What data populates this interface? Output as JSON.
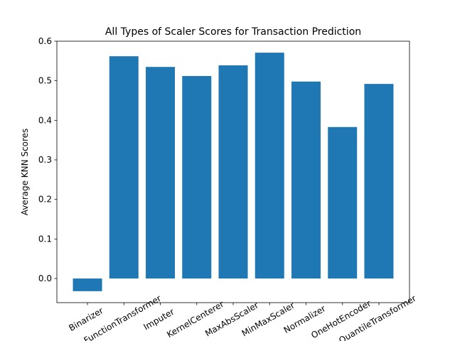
{
  "chart_data": {
    "type": "bar",
    "title": "All Types of Scaler Scores for Transaction Prediction",
    "y_label": "Average KNN Scores",
    "categories": [
      "Binarizer",
      "FunctionTransformer",
      "Imputer",
      "KernelCenterer",
      "MaxAbsScaler",
      "MinMaxScaler",
      "Normalizer",
      "OneHotEncoder",
      "QuantileTransformer"
    ],
    "values": [
      -0.032,
      0.562,
      0.535,
      0.512,
      0.539,
      0.571,
      0.498,
      0.383,
      0.492
    ],
    "color": "#1f77b4",
    "ylim": [
      -0.061,
      0.6
    ],
    "yticks": [
      {
        "value": 0,
        "label": "0.0"
      },
      0.1,
      0.2,
      0.3,
      0.4,
      0.5,
      0.6
    ]
  }
}
